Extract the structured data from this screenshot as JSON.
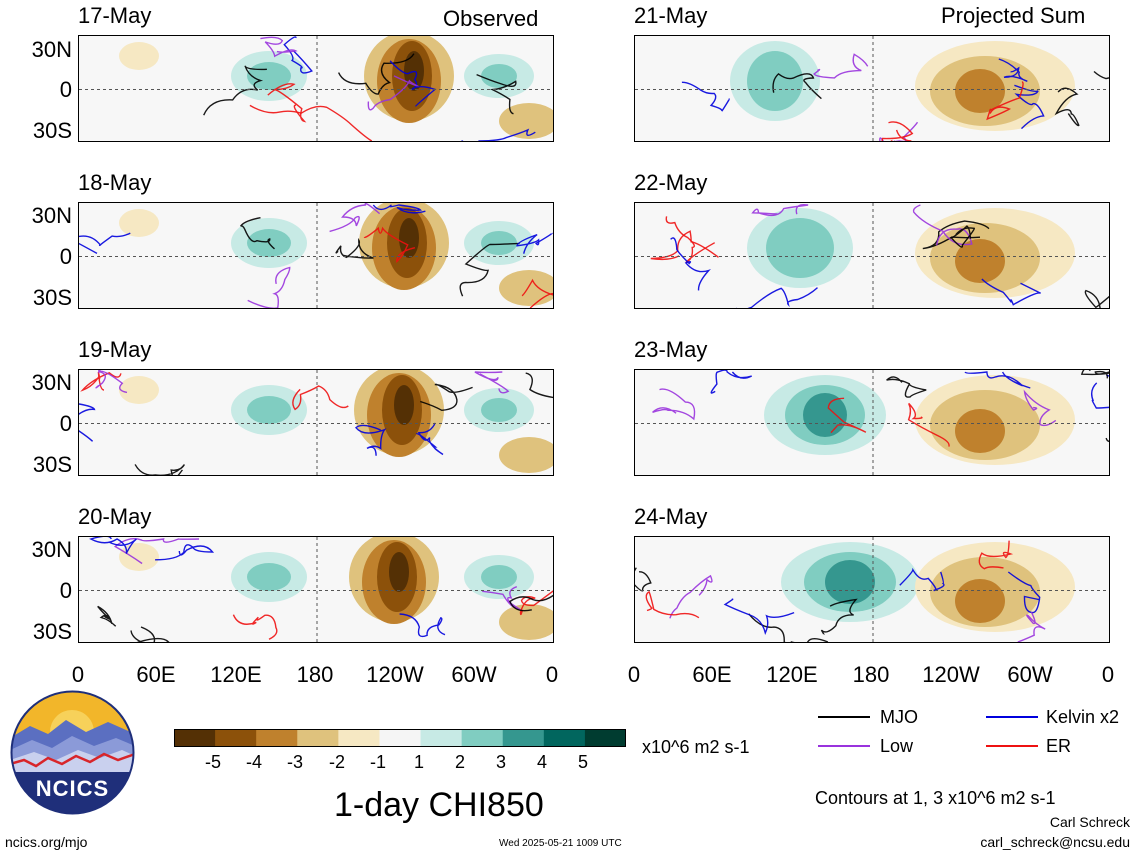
{
  "headers": {
    "left": "Observed",
    "right": "Projected Sum"
  },
  "lat_labels": [
    "30N",
    "0",
    "30S"
  ],
  "lon_labels": [
    "0",
    "60E",
    "120E",
    "180",
    "120W",
    "60W",
    "0"
  ],
  "observed_dates": [
    "17-May",
    "18-May",
    "19-May",
    "20-May"
  ],
  "projected_dates": [
    "21-May",
    "22-May",
    "23-May",
    "24-May"
  ],
  "colorbar": {
    "ticks": [
      "-5",
      "-4",
      "-3",
      "-2",
      "-1",
      "1",
      "2",
      "3",
      "4",
      "5"
    ],
    "unit": "x10^6 m2 s-1",
    "colors": [
      "#543005",
      "#8c510a",
      "#bf812d",
      "#dfc27d",
      "#f6e8c3",
      "#f5f5f5",
      "#c7eae5",
      "#80cdc1",
      "#35978f",
      "#01665e",
      "#003c30"
    ]
  },
  "legend": {
    "items": [
      {
        "label": "MJO",
        "color": "#000000"
      },
      {
        "label": "Kelvin x2",
        "color": "#0000dd"
      },
      {
        "label": "Low",
        "color": "#9933dd"
      },
      {
        "label": "ER",
        "color": "#ee1111"
      }
    ],
    "contours_note": "Contours at 1, 3 x10^6 m2 s-1"
  },
  "title": "1-day CHI850",
  "logo_text": "NCICS",
  "footer": {
    "url": "ncics.org/mjo",
    "timestamp": "Wed 2025-05-21 1009 UTC",
    "author": "Carl Schreck",
    "email": "carl_schreck@ncsu.edu"
  }
}
